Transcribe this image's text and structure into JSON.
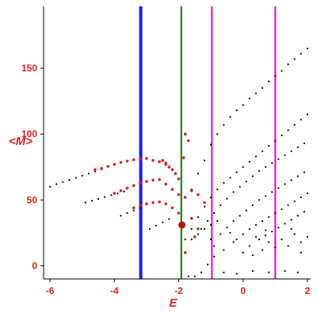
{
  "chart_data": {
    "type": "scatter",
    "xlabel": "E",
    "ylabel": "<M>",
    "xlim": [
      -6.2,
      2.1
    ],
    "ylim": [
      -10,
      197
    ],
    "grid": false,
    "x_ticks": [
      "-6",
      "-4",
      "-2",
      "0",
      "2"
    ],
    "x_tick_values": [
      -6,
      -4,
      -2,
      0,
      2
    ],
    "y_ticks": [
      "0",
      "50",
      "100",
      "150"
    ],
    "y_tick_values": [
      0,
      50,
      100,
      150
    ],
    "vertical_lines": [
      {
        "x": -3.18,
        "color": "#1a1aff",
        "style": "thick"
      },
      {
        "x": -1.92,
        "color": "#008000",
        "style": "medium"
      },
      {
        "x": -0.97,
        "color": "#e600e6",
        "style": "medium"
      },
      {
        "x": 1.0,
        "color": "#e600e6",
        "style": "medium"
      }
    ],
    "highlight_point": {
      "x": -1.9,
      "y": 31,
      "color": "#b31a00"
    },
    "series": [
      {
        "color": "#000000",
        "points": [
          [
            -6.0,
            60
          ],
          [
            -5.8,
            62
          ],
          [
            -5.6,
            63.6
          ],
          [
            -5.4,
            65.2
          ],
          [
            -5.2,
            66.8
          ],
          [
            -5.0,
            68.4
          ],
          [
            -4.8,
            70
          ],
          [
            -4.6,
            71.6
          ],
          [
            -4.4,
            73.2
          ],
          [
            -4.9,
            48
          ],
          [
            -4.7,
            49.4
          ],
          [
            -4.5,
            50.8
          ],
          [
            -4.3,
            52.2
          ],
          [
            -4.1,
            53.6
          ],
          [
            -3.9,
            55
          ],
          [
            -3.7,
            56.4
          ],
          [
            -3.8,
            38
          ],
          [
            -3.6,
            40
          ],
          [
            -3.4,
            42
          ],
          [
            -3.2,
            44
          ],
          [
            -2.9,
            28
          ],
          [
            -2.7,
            30.5
          ],
          [
            -2.5,
            33
          ],
          [
            -2.3,
            35.5
          ],
          [
            -1.6,
            20
          ],
          [
            -1.4,
            24
          ],
          [
            -1.2,
            28
          ],
          [
            -1.0,
            31
          ],
          [
            -0.8,
            34
          ],
          [
            -1.3,
            -5
          ],
          [
            -1.1,
            1
          ],
          [
            -0.9,
            7
          ],
          [
            -1.7,
            -8
          ],
          [
            -1.5,
            -8
          ],
          [
            -0.6,
            -5
          ],
          [
            -0.2,
            -6
          ],
          [
            0.3,
            -4
          ],
          [
            0.8,
            -5
          ],
          [
            1.3,
            -4
          ],
          [
            1.7,
            -5
          ],
          [
            -1.6,
            58
          ],
          [
            -1.4,
            70
          ],
          [
            -1.2,
            80
          ],
          [
            -1.0,
            92
          ],
          [
            -0.8,
            100
          ],
          [
            -0.6,
            107
          ],
          [
            -0.4,
            113
          ],
          [
            -0.2,
            118
          ],
          [
            0.0,
            122
          ],
          [
            0.2,
            127
          ],
          [
            0.4,
            131
          ],
          [
            0.6,
            135
          ],
          [
            0.8,
            140
          ],
          [
            1.0,
            144
          ],
          [
            1.2,
            148
          ],
          [
            1.4,
            153
          ],
          [
            1.6,
            157
          ],
          [
            1.8,
            161
          ],
          [
            2.0,
            165
          ],
          [
            -1.8,
            20
          ],
          [
            -1.6,
            28
          ],
          [
            -1.4,
            37
          ],
          [
            -1.2,
            45
          ],
          [
            -1.0,
            52
          ],
          [
            -0.8,
            58
          ],
          [
            -0.6,
            63
          ],
          [
            -0.4,
            67
          ],
          [
            -0.2,
            71
          ],
          [
            0.0,
            75
          ],
          [
            0.2,
            79
          ],
          [
            0.4,
            83
          ],
          [
            0.6,
            87
          ],
          [
            0.8,
            91
          ],
          [
            1.0,
            95
          ],
          [
            1.2,
            99
          ],
          [
            1.4,
            103
          ],
          [
            1.6,
            107
          ],
          [
            1.8,
            111
          ],
          [
            2.0,
            115
          ],
          [
            -1.3,
            28
          ],
          [
            -1.1,
            34
          ],
          [
            -0.9,
            40
          ],
          [
            -0.7,
            46
          ],
          [
            -0.5,
            51
          ],
          [
            -0.3,
            56
          ],
          [
            -0.1,
            60
          ],
          [
            0.1,
            64
          ],
          [
            0.3,
            68
          ],
          [
            0.5,
            72
          ],
          [
            0.7,
            75
          ],
          [
            0.9,
            78
          ],
          [
            1.1,
            81
          ],
          [
            1.3,
            84
          ],
          [
            1.5,
            87
          ],
          [
            1.7,
            90
          ],
          [
            1.9,
            93
          ],
          [
            -0.7,
            24
          ],
          [
            -0.5,
            29
          ],
          [
            -0.3,
            34
          ],
          [
            -0.1,
            38
          ],
          [
            0.1,
            42
          ],
          [
            0.3,
            46
          ],
          [
            0.5,
            50
          ],
          [
            0.7,
            53
          ],
          [
            0.9,
            56
          ],
          [
            1.1,
            59
          ],
          [
            1.3,
            62
          ],
          [
            1.5,
            65
          ],
          [
            1.7,
            68
          ],
          [
            1.9,
            71
          ],
          [
            -0.2,
            20
          ],
          [
            0.0,
            24
          ],
          [
            0.2,
            28
          ],
          [
            0.4,
            31
          ],
          [
            0.6,
            34
          ],
          [
            0.8,
            37
          ],
          [
            1.0,
            40
          ],
          [
            1.2,
            43
          ],
          [
            1.4,
            46
          ],
          [
            1.6,
            49
          ],
          [
            1.8,
            52
          ],
          [
            2.0,
            55
          ],
          [
            0.5,
            20
          ],
          [
            0.7,
            23
          ],
          [
            0.9,
            26
          ],
          [
            1.1,
            29
          ],
          [
            1.3,
            32
          ],
          [
            1.5,
            35
          ],
          [
            1.7,
            38
          ],
          [
            1.9,
            41
          ],
          [
            -0.9,
            15
          ],
          [
            -0.6,
            12
          ],
          [
            -0.3,
            18
          ],
          [
            0.0,
            10
          ],
          [
            0.2,
            15
          ],
          [
            0.4,
            22
          ],
          [
            0.6,
            12
          ],
          [
            0.8,
            18
          ],
          [
            1.0,
            14
          ],
          [
            1.2,
            20
          ],
          [
            1.4,
            15
          ],
          [
            1.6,
            24
          ],
          [
            1.8,
            18
          ],
          [
            2.0,
            22
          ],
          [
            -0.4,
            25
          ],
          [
            0.3,
            8
          ],
          [
            0.7,
            27
          ],
          [
            1.5,
            28
          ],
          [
            1.8,
            10
          ],
          [
            -1.0,
            20
          ]
        ]
      },
      {
        "color": "#e0201b",
        "points": [
          [
            -4.6,
            73
          ],
          [
            -4.4,
            74
          ],
          [
            -4.2,
            75.5
          ],
          [
            -4.0,
            77
          ],
          [
            -3.8,
            78.5
          ],
          [
            -3.6,
            79.5
          ],
          [
            -3.4,
            80.5
          ],
          [
            -3.2,
            81
          ],
          [
            -3.0,
            81.5
          ],
          [
            -2.8,
            80
          ],
          [
            -2.6,
            79
          ],
          [
            -2.4,
            77
          ],
          [
            -2.2,
            73
          ],
          [
            -2.1,
            70
          ],
          [
            -2.0,
            66
          ],
          [
            -2.5,
            80
          ],
          [
            -2.4,
            78
          ],
          [
            -2.3,
            75
          ],
          [
            -4.0,
            55
          ],
          [
            -3.8,
            57
          ],
          [
            -3.6,
            59
          ],
          [
            -3.4,
            61
          ],
          [
            -3.2,
            63
          ],
          [
            -3.0,
            64
          ],
          [
            -2.8,
            65
          ],
          [
            -2.6,
            65.5
          ],
          [
            -2.4,
            62
          ],
          [
            -2.2,
            58
          ],
          [
            -2.0,
            54
          ],
          [
            -1.8,
            52
          ],
          [
            -3.4,
            44
          ],
          [
            -3.2,
            45.5
          ],
          [
            -3.0,
            47
          ],
          [
            -2.8,
            48
          ],
          [
            -2.6,
            48.5
          ],
          [
            -2.4,
            47
          ],
          [
            -2.2,
            44
          ],
          [
            -2.0,
            40
          ],
          [
            -1.85,
            82
          ],
          [
            -1.8,
            100
          ],
          [
            -1.7,
            95
          ],
          [
            -1.6,
            57
          ],
          [
            -1.4,
            54
          ],
          [
            -1.2,
            48
          ],
          [
            -1.6,
            36
          ],
          [
            -1.4,
            28
          ],
          [
            -1.5,
            22
          ],
          [
            -1.8,
            10
          ]
        ]
      }
    ]
  }
}
